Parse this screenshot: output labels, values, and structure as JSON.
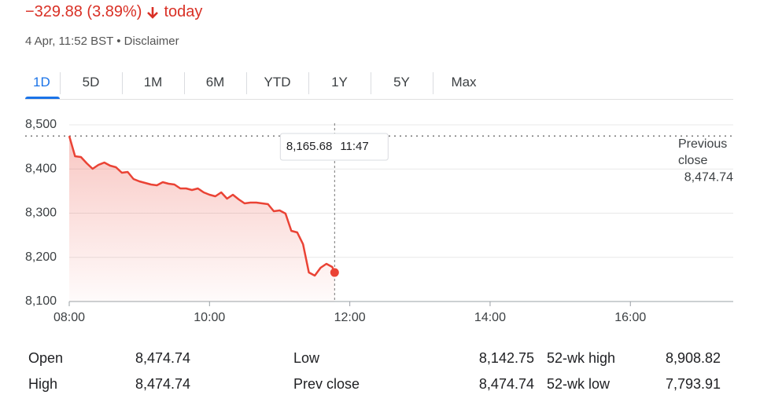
{
  "header": {
    "change": "−329.88 (3.89%)",
    "period": "today",
    "timestamp": "4 Apr, 11:52 BST",
    "disclaimer": "Disclaimer"
  },
  "tabs": [
    "1D",
    "5D",
    "1M",
    "6M",
    "YTD",
    "1Y",
    "5Y",
    "Max"
  ],
  "chart_data": {
    "type": "line",
    "color": "#ea4335",
    "x": [
      "08:00",
      "08:05",
      "08:10",
      "08:15",
      "08:20",
      "08:25",
      "08:30",
      "08:35",
      "08:40",
      "08:45",
      "08:50",
      "08:55",
      "09:00",
      "09:05",
      "09:10",
      "09:15",
      "09:20",
      "09:25",
      "09:30",
      "09:35",
      "09:40",
      "09:45",
      "09:50",
      "09:55",
      "10:00",
      "10:05",
      "10:10",
      "10:15",
      "10:20",
      "10:25",
      "10:30",
      "10:35",
      "10:40",
      "10:45",
      "10:50",
      "10:55",
      "11:00",
      "11:05",
      "11:10",
      "11:15",
      "11:20",
      "11:25",
      "11:30",
      "11:35",
      "11:40",
      "11:45",
      "11:47"
    ],
    "values": [
      8474.74,
      8428.9,
      8427.1,
      8412.9,
      8400.4,
      8409.3,
      8414.7,
      8407.6,
      8404,
      8391.6,
      8393.3,
      8377.3,
      8372,
      8368.4,
      8364.9,
      8363.1,
      8370.2,
      8366.7,
      8364.9,
      8356,
      8356,
      8352.4,
      8356,
      8347.1,
      8341.8,
      8338.2,
      8347.1,
      8332.9,
      8341.8,
      8331.1,
      8322.2,
      8324,
      8324,
      8322.2,
      8320.4,
      8304.4,
      8306.2,
      8299.1,
      8260,
      8256.4,
      8229.8,
      8165.8,
      8158.7,
      8176.4,
      8185.3,
      8178.2,
      8165.68
    ],
    "xlim": [
      "08:00",
      "17:30"
    ],
    "xticks": [
      "08:00",
      "10:00",
      "12:00",
      "14:00",
      "16:00"
    ],
    "ylim": [
      8100,
      8500
    ],
    "yticks": [
      {
        "value": 8100,
        "label": "8,100"
      },
      {
        "value": 8200,
        "label": "8,200"
      },
      {
        "value": 8300,
        "label": "8,300"
      },
      {
        "value": 8400,
        "label": "8,400"
      },
      {
        "value": 8500,
        "label": "8,500"
      }
    ],
    "grid": true,
    "previous_close": {
      "label": "Previous close",
      "value": 8474.74,
      "value_label": "8,474.74"
    },
    "tooltip": {
      "value": "8,165.68",
      "time": "11:47"
    }
  },
  "stats": [
    [
      [
        "Open",
        "8,474.74"
      ],
      [
        "Low",
        "8,142.75"
      ],
      [
        "52-wk high",
        "8,908.82"
      ]
    ],
    [
      [
        "High",
        "8,474.74"
      ],
      [
        "Prev close",
        "8,474.74"
      ],
      [
        "52-wk low",
        "7,793.91"
      ]
    ]
  ]
}
